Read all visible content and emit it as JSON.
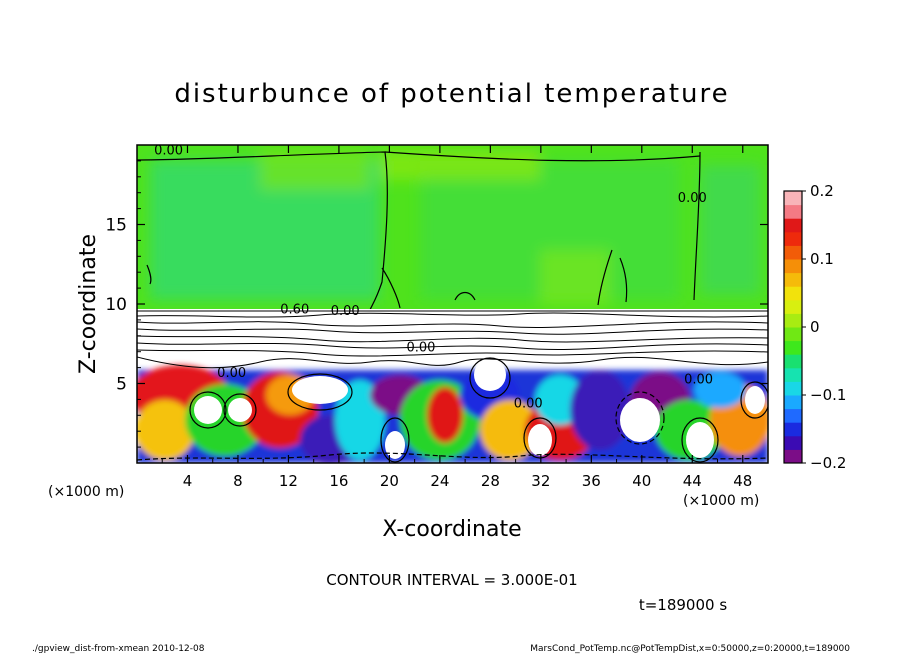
{
  "chart_data": {
    "type": "heatmap",
    "title": "disturbunce of potential temperature",
    "xlabel": "X-coordinate",
    "ylabel": "Z-coordinate",
    "x_unit_left": "(×1000 m)",
    "x_unit_right": "(×1000 m)",
    "x_ticks": [
      "4",
      "8",
      "12",
      "16",
      "20",
      "24",
      "28",
      "32",
      "36",
      "40",
      "44",
      "48"
    ],
    "x_tick_values": [
      4,
      8,
      12,
      16,
      20,
      24,
      28,
      32,
      36,
      40,
      44,
      48
    ],
    "y_ticks": [
      "5",
      "10",
      "15"
    ],
    "y_tick_values": [
      5,
      10,
      15
    ],
    "xlim": [
      0,
      50
    ],
    "ylim": [
      0,
      20
    ],
    "colorbar": {
      "range": [
        -0.2,
        0.2
      ],
      "tick_labels": [
        "0.2",
        "0.1",
        "0",
        "−0.1",
        "−0.2"
      ],
      "tick_values": [
        0.2,
        0.1,
        0,
        -0.1,
        -0.2
      ],
      "colors": [
        "#7b0d87",
        "#3b0bb3",
        "#1a2be0",
        "#1f6aff",
        "#1aa9ff",
        "#19d7e6",
        "#16e3b0",
        "#19e070",
        "#3ee81c",
        "#70e814",
        "#a8ec12",
        "#d8ef10",
        "#f2e20c",
        "#f5bb0a",
        "#f58f08",
        "#f25c08",
        "#ee2a0c",
        "#e01818",
        "#f47a84",
        "#f8b4b8"
      ]
    },
    "contour_labels": [
      {
        "text": "0.00",
        "x": 2.5,
        "z": 19.4
      },
      {
        "text": "0.00",
        "x": 44.0,
        "z": 16.4
      },
      {
        "text": "0.00",
        "x": 16.5,
        "z": 9.3
      },
      {
        "text": "0.00",
        "x": 22.5,
        "z": 7.0
      },
      {
        "text": "0.00",
        "x": 7.5,
        "z": 5.4
      },
      {
        "text": "0.00",
        "x": 31.0,
        "z": 3.5
      },
      {
        "text": "0.00",
        "x": 44.5,
        "z": 5.0
      },
      {
        "text": "0.60",
        "x": 12.5,
        "z": 9.4
      }
    ],
    "contour_interval_text": "CONTOUR INTERVAL = 3.000E-01",
    "time_text": "t=189000 s",
    "footer_left": "./gpview_dist-from-xmean   2010-12-08",
    "footer_right": "MarsCond_PotTemp.nc@PotTempDist,x=0:50000,z=0:20000,t=189000"
  }
}
